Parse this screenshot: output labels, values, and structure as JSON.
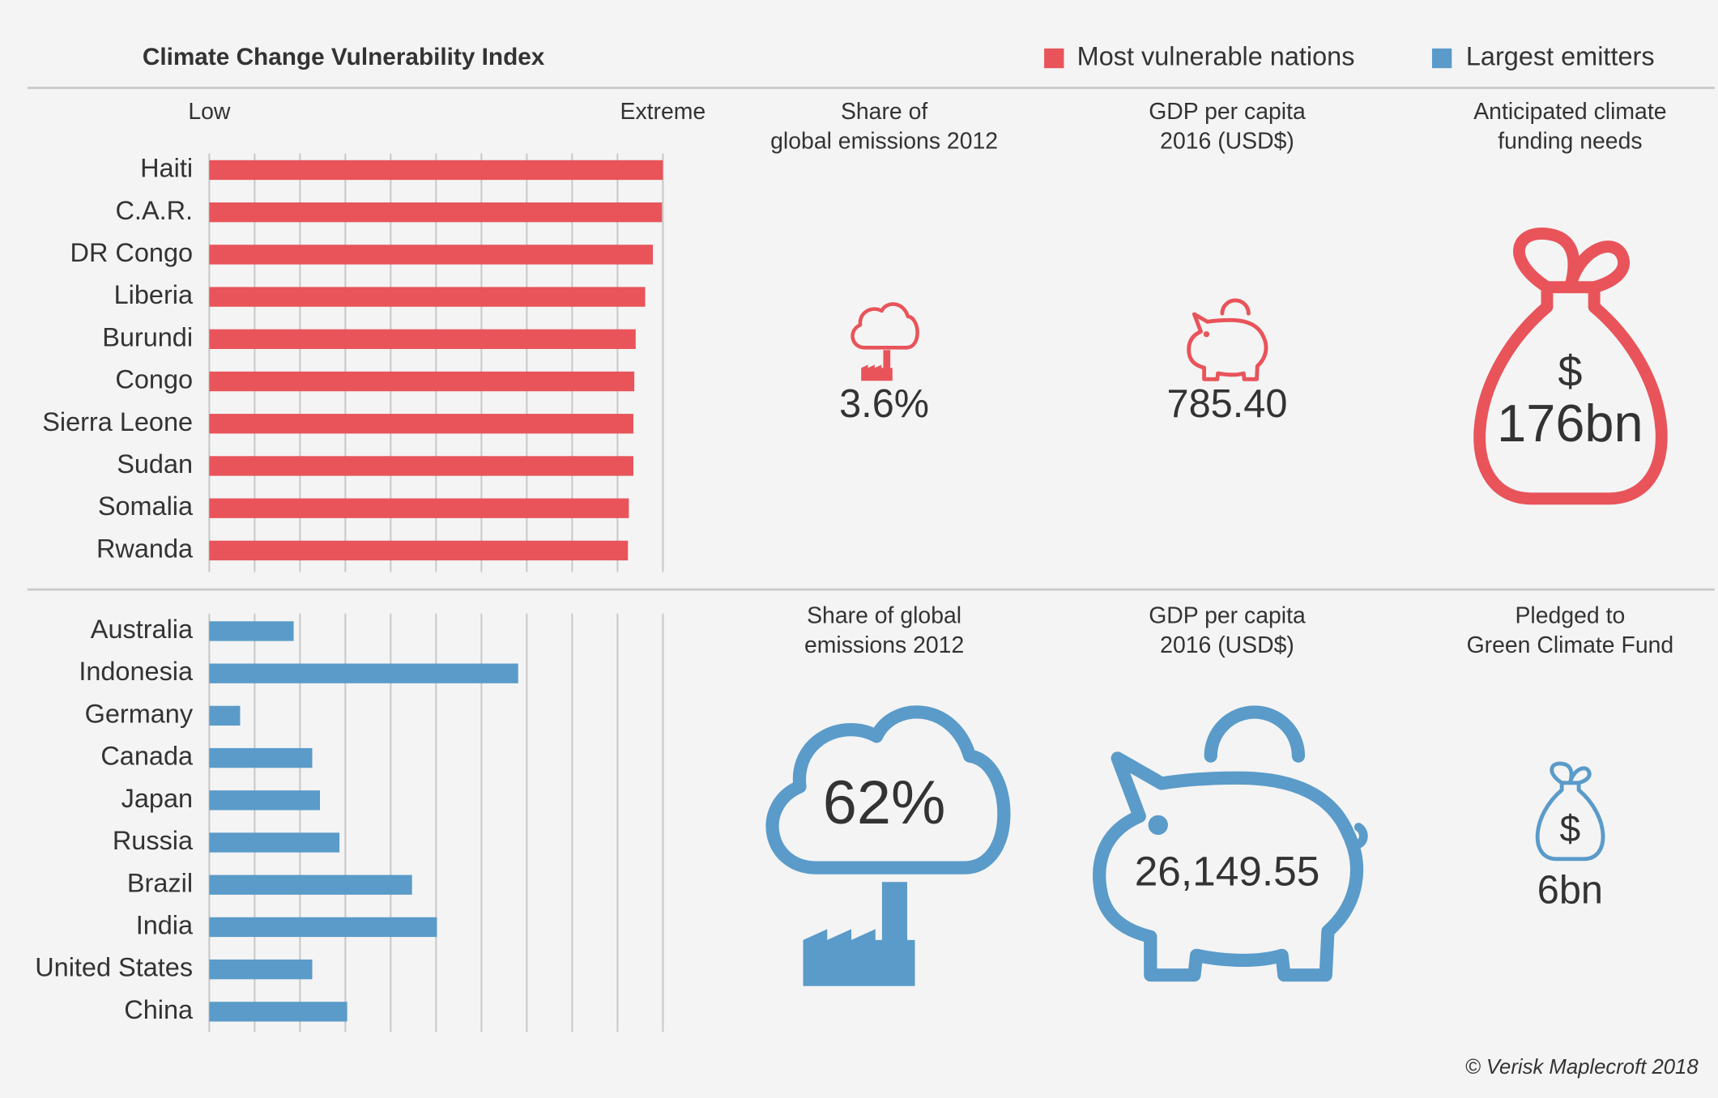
{
  "title": "Climate Change Vulnerability Index",
  "chart_data": [
    {
      "type": "bar",
      "orientation": "horizontal",
      "categories": [
        "Haiti",
        "C.A.R.",
        "DR Congo",
        "Liberia",
        "Burundi",
        "Congo",
        "Sierra Leone",
        "Sudan",
        "Somalia",
        "Rwanda"
      ],
      "series": [
        {
          "name": "Most vulnerable nations",
          "color": "#e8545a",
          "values": [
            10.0,
            9.98,
            9.78,
            9.61,
            9.4,
            9.37,
            9.35,
            9.35,
            9.25,
            9.23
          ]
        }
      ],
      "xlim": [
        0,
        10
      ],
      "xticks": [
        0,
        1,
        2,
        3,
        4,
        5,
        6,
        7,
        8,
        9,
        10
      ],
      "xtick_labels": [
        {
          "value": 0,
          "label": "Low"
        },
        {
          "value": 10,
          "label": "Extreme"
        }
      ],
      "grid": true
    },
    {
      "type": "bar",
      "orientation": "horizontal",
      "categories": [
        "Australia",
        "Indonesia",
        "Germany",
        "Canada",
        "Japan",
        "Russia",
        "Brazil",
        "India",
        "United States",
        "China"
      ],
      "series": [
        {
          "name": "Largest emitters",
          "color": "#5a9bc9",
          "values": [
            1.86,
            6.81,
            0.68,
            2.27,
            2.44,
            2.87,
            4.47,
            5.02,
            2.27,
            3.04
          ]
        }
      ],
      "xlim": [
        0,
        10
      ],
      "xticks": [
        0,
        1,
        2,
        3,
        4,
        5,
        6,
        7,
        8,
        9,
        10
      ],
      "grid": true
    }
  ],
  "stats": {
    "top": [
      {
        "label": [
          "Share of",
          "global emissions 2012"
        ],
        "value": "3.6%"
      },
      {
        "label": [
          "GDP per capita",
          "2016 (USD$)"
        ],
        "value": "785.40"
      },
      {
        "label": [
          "Anticipated climate",
          "funding needs"
        ],
        "value": "176bn"
      }
    ],
    "bottom": [
      {
        "label": [
          "Share of global",
          "emissions 2012"
        ],
        "value": "62%"
      },
      {
        "label": [
          "GDP per capita",
          "2016 (USD$)"
        ],
        "value": "26,149.55"
      },
      {
        "label": [
          "Pledged to",
          "Green Climate Fund"
        ],
        "value": "6bn"
      }
    ]
  },
  "credit": "© Verisk Maplecroft 2018"
}
